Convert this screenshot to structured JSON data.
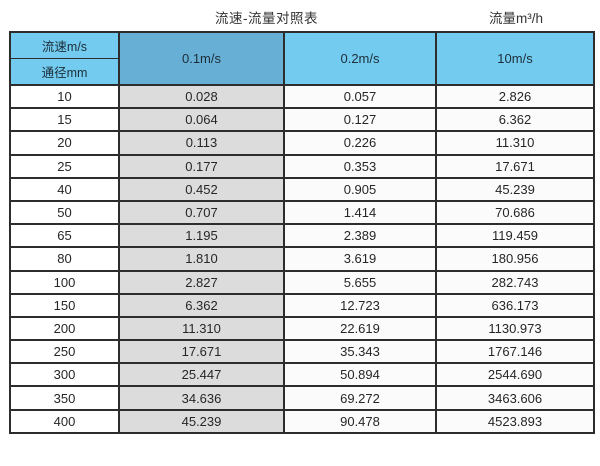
{
  "page": {
    "title_left": "流速-流量对照表",
    "title_right": "流量m³/h"
  },
  "colors": {
    "header_blue": "#74CBF0",
    "header_blue_dark": "#67AFD4",
    "shaded_column_gray": "#DCDCDC",
    "grid_border": "#2d2d2d",
    "text": "#262626"
  },
  "table": {
    "header": {
      "corner_top": "流速m/s",
      "corner_bottom": "通径mm",
      "col_v01": "0.1m/s",
      "col_v02": "0.2m/s",
      "col_v10": "10m/s"
    },
    "rows": [
      {
        "dn": "10",
        "v01": "0.028",
        "v02": "0.057",
        "v10": "2.826"
      },
      {
        "dn": "15",
        "v01": "0.064",
        "v02": "0.127",
        "v10": "6.362"
      },
      {
        "dn": "20",
        "v01": "0.113",
        "v02": "0.226",
        "v10": "11.310"
      },
      {
        "dn": "25",
        "v01": "0.177",
        "v02": "0.353",
        "v10": "17.671"
      },
      {
        "dn": "40",
        "v01": "0.452",
        "v02": "0.905",
        "v10": "45.239"
      },
      {
        "dn": "50",
        "v01": "0.707",
        "v02": "1.414",
        "v10": "70.686"
      },
      {
        "dn": "65",
        "v01": "1.195",
        "v02": "2.389",
        "v10": "119.459"
      },
      {
        "dn": "80",
        "v01": "1.810",
        "v02": "3.619",
        "v10": "180.956"
      },
      {
        "dn": "100",
        "v01": "2.827",
        "v02": "5.655",
        "v10": "282.743"
      },
      {
        "dn": "150",
        "v01": "6.362",
        "v02": "12.723",
        "v10": "636.173"
      },
      {
        "dn": "200",
        "v01": "11.310",
        "v02": "22.619",
        "v10": "1130.973"
      },
      {
        "dn": "250",
        "v01": "17.671",
        "v02": "35.343",
        "v10": "1767.146"
      },
      {
        "dn": "300",
        "v01": "25.447",
        "v02": "50.894",
        "v10": "2544.690"
      },
      {
        "dn": "350",
        "v01": "34.636",
        "v02": "69.272",
        "v10": "3463.606"
      },
      {
        "dn": "400",
        "v01": "45.239",
        "v02": "90.478",
        "v10": "4523.893"
      }
    ]
  },
  "chart_data": {
    "type": "table",
    "title": "流速-流量对照表",
    "unit_label": "流量m³/h",
    "row_header_label": "通径mm",
    "column_header_label": "流速m/s",
    "categories": [
      10,
      15,
      20,
      25,
      40,
      50,
      65,
      80,
      100,
      150,
      200,
      250,
      300,
      350,
      400
    ],
    "series": [
      {
        "name": "0.1m/s",
        "values": [
          0.028,
          0.064,
          0.113,
          0.177,
          0.452,
          0.707,
          1.195,
          1.81,
          2.827,
          6.362,
          11.31,
          17.671,
          25.447,
          34.636,
          45.239
        ]
      },
      {
        "name": "0.2m/s",
        "values": [
          0.057,
          0.127,
          0.226,
          0.353,
          0.905,
          1.414,
          2.389,
          3.619,
          5.655,
          12.723,
          22.619,
          35.343,
          50.894,
          69.272,
          90.478
        ]
      },
      {
        "name": "10m/s",
        "values": [
          2.826,
          6.362,
          11.31,
          17.671,
          45.239,
          70.686,
          119.459,
          180.956,
          282.743,
          636.173,
          1130.973,
          1767.146,
          2544.69,
          3463.606,
          4523.893
        ]
      }
    ]
  }
}
